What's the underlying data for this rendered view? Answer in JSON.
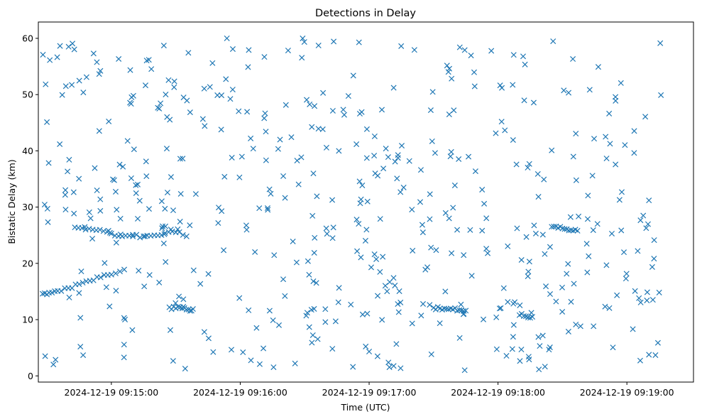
{
  "chart_data": {
    "type": "scatter",
    "title": "Detections in Delay",
    "xlabel": "Time (UTC)",
    "ylabel": "Bistatic Delay (km)",
    "x_ticks": [
      "2024-12-19 09:15:00",
      "2024-12-19 09:16:00",
      "2024-12-19 09:17:00",
      "2024-12-19 09:18:00",
      "2024-12-19 09:19:00"
    ],
    "y_ticks": [
      "0",
      "10",
      "20",
      "30",
      "40",
      "50",
      "60"
    ],
    "xlim": [
      "2024-12-19 09:14:26",
      "2024-12-19 09:19:31"
    ],
    "ylim": [
      -1.1,
      62.9
    ],
    "marker": "x",
    "color": "#1f77b4",
    "grid": false,
    "legend": "none",
    "tracks": [
      {
        "t": [
          "2024-12-19 09:14:28",
          "2024-12-19 09:14:31",
          "2024-12-19 09:14:35",
          "2024-12-19 09:14:40",
          "2024-12-19 09:14:45",
          "2024-12-19 09:14:50",
          "2024-12-19 09:14:55",
          "2024-12-19 09:15:00",
          "2024-12-19 09:15:06"
        ],
        "delay_km": [
          14.6,
          14.8,
          15.1,
          15.6,
          16.3,
          16.9,
          17.5,
          18.0,
          18.9
        ]
      },
      {
        "t": [
          "2024-12-19 09:14:43",
          "2024-12-19 09:14:48",
          "2024-12-19 09:14:53",
          "2024-12-19 09:14:58",
          "2024-12-19 09:15:00",
          "2024-12-19 09:15:05",
          "2024-12-19 09:15:10",
          "2024-12-19 09:15:15",
          "2024-12-19 09:15:20",
          "2024-12-19 09:15:25",
          "2024-12-19 09:15:30",
          "2024-12-19 09:15:35"
        ],
        "delay_km": [
          26.4,
          26.0,
          25.9,
          25.6,
          25.3,
          24.8,
          24.8,
          24.8,
          25.0,
          25.4,
          25.5,
          24.8
        ]
      },
      {
        "t": [
          "2024-12-19 09:15:27",
          "2024-12-19 09:15:30",
          "2024-12-19 09:15:33",
          "2024-12-19 09:15:36",
          "2024-12-19 09:15:38"
        ],
        "delay_km": [
          12.2,
          12.0,
          12.0,
          11.8,
          11.9
        ]
      },
      {
        "t": [
          "2024-12-19 09:17:30",
          "2024-12-19 09:17:33",
          "2024-12-19 09:17:36",
          "2024-12-19 09:17:39",
          "2024-12-19 09:17:42",
          "2024-12-19 09:17:45"
        ],
        "delay_km": [
          12.1,
          12.0,
          11.9,
          11.8,
          11.7,
          11.6
        ]
      },
      {
        "t": [
          "2024-12-19 09:18:10",
          "2024-12-19 09:18:13",
          "2024-12-19 09:18:16"
        ],
        "delay_km": [
          10.8,
          10.6,
          10.5
        ]
      },
      {
        "t": [
          "2024-12-19 09:18:25",
          "2024-12-19 09:18:28",
          "2024-12-19 09:18:31",
          "2024-12-19 09:18:34",
          "2024-12-19 09:18:37"
        ],
        "delay_km": [
          26.5,
          26.3,
          26.1,
          25.9,
          25.8
        ]
      }
    ],
    "background": {
      "count": 520,
      "t_range": [
        "2024-12-19 09:14:28",
        "2024-12-19 09:19:16"
      ],
      "delay_range_km": [
        1,
        60
      ]
    }
  }
}
